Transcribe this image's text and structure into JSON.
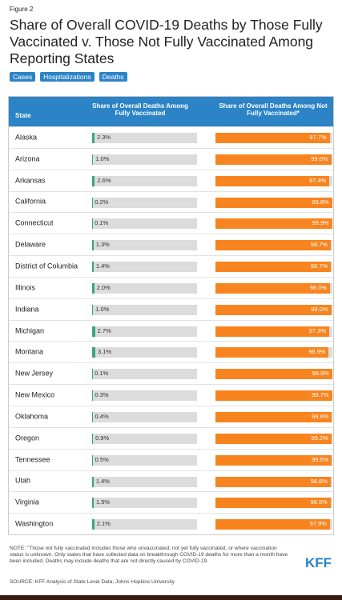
{
  "chart_data": {
    "type": "table-bar",
    "figure_label": "Figure 2",
    "title": "Share of Overall COVID-19 Deaths by Those Fully Vaccinated v. Those Not Fully Vaccinated Among Reporting States",
    "tabs": [
      "Cases",
      "Hospitalizations",
      "Deaths"
    ],
    "category_header": "State",
    "categories": [
      "Alaska",
      "Arizona",
      "Arkansas",
      "California",
      "Connecticut",
      "Delaware",
      "District of Columbia",
      "Illinois",
      "Indiana",
      "Michigan",
      "Montana",
      "New Jersey",
      "New Mexico",
      "Oklahoma",
      "Oregon",
      "Tennessee",
      "Utah",
      "Virginia",
      "Washington"
    ],
    "xlim": [
      0,
      100
    ],
    "series": [
      {
        "name": "Share of Overall Deaths Among Fully Vaccinated",
        "color": "#3aa57a",
        "track_color": "#dcdcdc",
        "values": [
          2.3,
          1.0,
          2.6,
          0.2,
          0.1,
          1.3,
          1.4,
          2.0,
          1.0,
          2.7,
          3.1,
          0.1,
          0.3,
          0.4,
          0.9,
          0.5,
          1.4,
          1.5,
          2.1
        ],
        "value_labels": [
          "2.3%",
          "1.0%",
          "2.6%",
          "0.2%",
          "0.1%",
          "1.3%",
          "1.4%",
          "2.0%",
          "1.0%",
          "2.7%",
          "3.1%",
          "0.1%",
          "0.3%",
          "0.4%",
          "0.9%",
          "0.5%",
          "1.4%",
          "1.5%",
          "2.1%"
        ]
      },
      {
        "name": "Share of Overall Deaths Among Not Fully Vaccinated*",
        "color": "#f7841f",
        "track_color": "#dcdcdc",
        "values": [
          97.7,
          99.0,
          97.4,
          99.8,
          99.9,
          98.7,
          98.7,
          98.0,
          99.0,
          97.3,
          96.9,
          99.9,
          99.7,
          99.6,
          99.2,
          99.5,
          98.6,
          98.5,
          97.9
        ],
        "value_labels": [
          "97.7%",
          "99.0%",
          "97.4%",
          "99.8%",
          "99.9%",
          "98.7%",
          "98.7%",
          "98.0%",
          "99.0%",
          "97.3%",
          "96.9%",
          "99.9%",
          "99.7%",
          "99.6%",
          "99.2%",
          "99.5%",
          "98.6%",
          "98.5%",
          "97.9%"
        ]
      }
    ],
    "note": "NOTE: \"Those not fully vaccinated includes those who unvaccinated, not yet fully vaccinated, or where vaccination status is unknown. Only states that have collected data on breakthrough COVID-19 deaths for more than a month have been included. Deaths may include deaths that are not directly caused by COVID-19.",
    "source": "SOURCE: KFF Analysis of State Level Data; Johns Hopkins University",
    "logo": "KFF"
  }
}
